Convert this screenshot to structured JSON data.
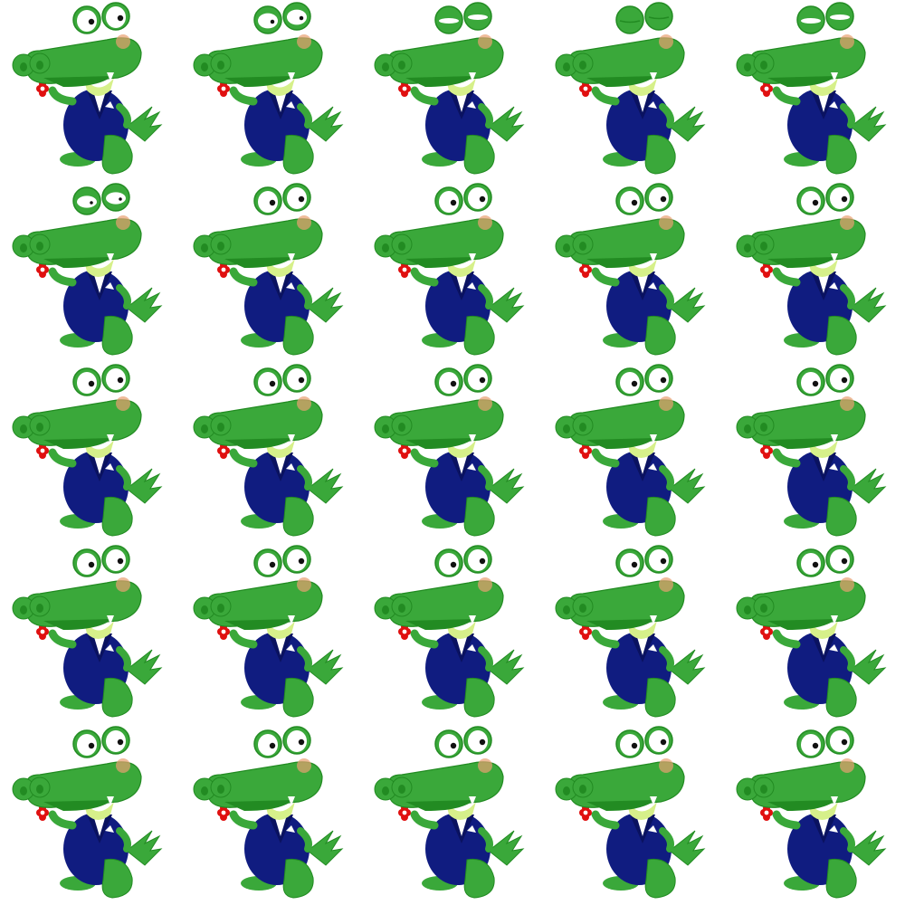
{
  "sprite_sheet": {
    "background_color": "#ffffff",
    "character": "crocodile-in-suit-holding-flower",
    "columns": 5,
    "rows": 5,
    "colors": {
      "skin": "#3aa83a",
      "skin_dark": "#228b22",
      "skin_light": "#5cc45c",
      "belly": "#d6f08a",
      "suit": "#101c80",
      "suit_dark": "#0a1260",
      "shirt": "#ffffff",
      "flower": "#e01010",
      "flower_center": "#ffffff",
      "cheek": "#e8a070",
      "eye_white": "#ffffff",
      "pupil": "#111111",
      "shoe": "#e8d040"
    },
    "frames": [
      {
        "eye_open": 1.0
      },
      {
        "eye_open": 0.7
      },
      {
        "eye_open": 0.25
      },
      {
        "eye_open": 0.0
      },
      {
        "eye_open": 0.25
      },
      {
        "eye_open": 0.55
      },
      {
        "eye_open": 1.0
      },
      {
        "eye_open": 1.0
      },
      {
        "eye_open": 1.0
      },
      {
        "eye_open": 1.0
      },
      {
        "eye_open": 1.0
      },
      {
        "eye_open": 1.0
      },
      {
        "eye_open": 1.0
      },
      {
        "eye_open": 1.0
      },
      {
        "eye_open": 1.0
      },
      {
        "eye_open": 1.0
      },
      {
        "eye_open": 1.0
      },
      {
        "eye_open": 1.0
      },
      {
        "eye_open": 1.0
      },
      {
        "eye_open": 1.0
      },
      {
        "eye_open": 1.0
      },
      {
        "eye_open": 1.0
      },
      {
        "eye_open": 1.0
      },
      {
        "eye_open": 1.0
      },
      {
        "eye_open": 1.0
      }
    ]
  }
}
